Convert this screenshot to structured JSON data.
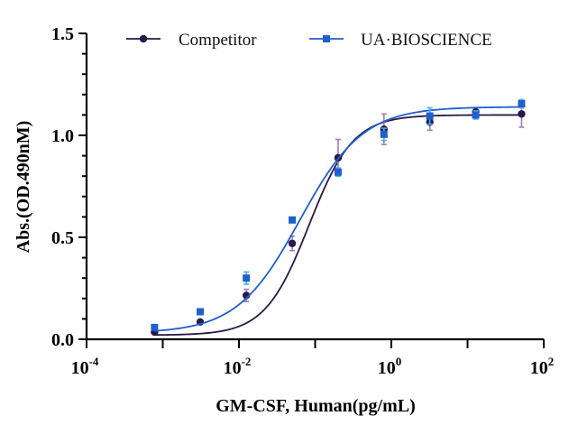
{
  "chart_data": {
    "type": "scatter",
    "title": "",
    "xlabel": "GM-CSF, Human(pg/mL)",
    "ylabel": "Abs.(OD.490nM)",
    "x_scale": "log10",
    "xlim": [
      0.0001,
      100
    ],
    "ylim": [
      0,
      1.5
    ],
    "x_ticks": [
      {
        "base": "10",
        "exp": "-4",
        "value": 0.0001
      },
      {
        "base": "10",
        "exp": "-2",
        "value": 0.01
      },
      {
        "base": "10",
        "exp": "0",
        "value": 1
      },
      {
        "base": "10",
        "exp": "2",
        "value": 100
      }
    ],
    "y_ticks": [
      {
        "label": "0.0",
        "value": 0
      },
      {
        "label": "0.5",
        "value": 0.5
      },
      {
        "label": "1.0",
        "value": 1.0
      },
      {
        "label": "1.5",
        "value": 1.5
      }
    ],
    "grid": false,
    "legend_position": "top",
    "series": [
      {
        "name": "Competitor",
        "color": "#2a1848",
        "error_color": "#9a7fb8",
        "marker": "circle",
        "fit": {
          "bottom": 0.02,
          "top": 1.1,
          "logEC50": -1.08,
          "hill": 1.5
        },
        "points": [
          {
            "x": 0.00078,
            "y": 0.035,
            "err": 0.0
          },
          {
            "x": 0.0031,
            "y": 0.085,
            "err": 0.0
          },
          {
            "x": 0.0125,
            "y": 0.215,
            "err": 0.03
          },
          {
            "x": 0.05,
            "y": 0.47,
            "err": 0.035
          },
          {
            "x": 0.2,
            "y": 0.89,
            "err": 0.09
          },
          {
            "x": 0.8,
            "y": 1.03,
            "err": 0.075
          },
          {
            "x": 3.2,
            "y": 1.065,
            "err": 0.04
          },
          {
            "x": 12.8,
            "y": 1.115,
            "err": 0.02
          },
          {
            "x": 51.2,
            "y": 1.105,
            "err": 0.065
          }
        ]
      },
      {
        "name": "UA·BIOSCIENCE",
        "color": "#1f5fce",
        "error_color": "#3fb0f0",
        "marker": "square",
        "fit": {
          "bottom": 0.03,
          "top": 1.14,
          "logEC50": -1.2,
          "hill": 1.05
        },
        "points": [
          {
            "x": 0.00078,
            "y": 0.058,
            "err": 0.01
          },
          {
            "x": 0.0031,
            "y": 0.135,
            "err": 0.01
          },
          {
            "x": 0.0125,
            "y": 0.3,
            "err": 0.03
          },
          {
            "x": 0.05,
            "y": 0.585,
            "err": 0.012
          },
          {
            "x": 0.2,
            "y": 0.82,
            "err": 0.02
          },
          {
            "x": 0.8,
            "y": 1.005,
            "err": 0.03
          },
          {
            "x": 3.2,
            "y": 1.095,
            "err": 0.04
          },
          {
            "x": 12.8,
            "y": 1.1,
            "err": 0.02
          },
          {
            "x": 51.2,
            "y": 1.155,
            "err": 0.02
          }
        ]
      }
    ]
  }
}
